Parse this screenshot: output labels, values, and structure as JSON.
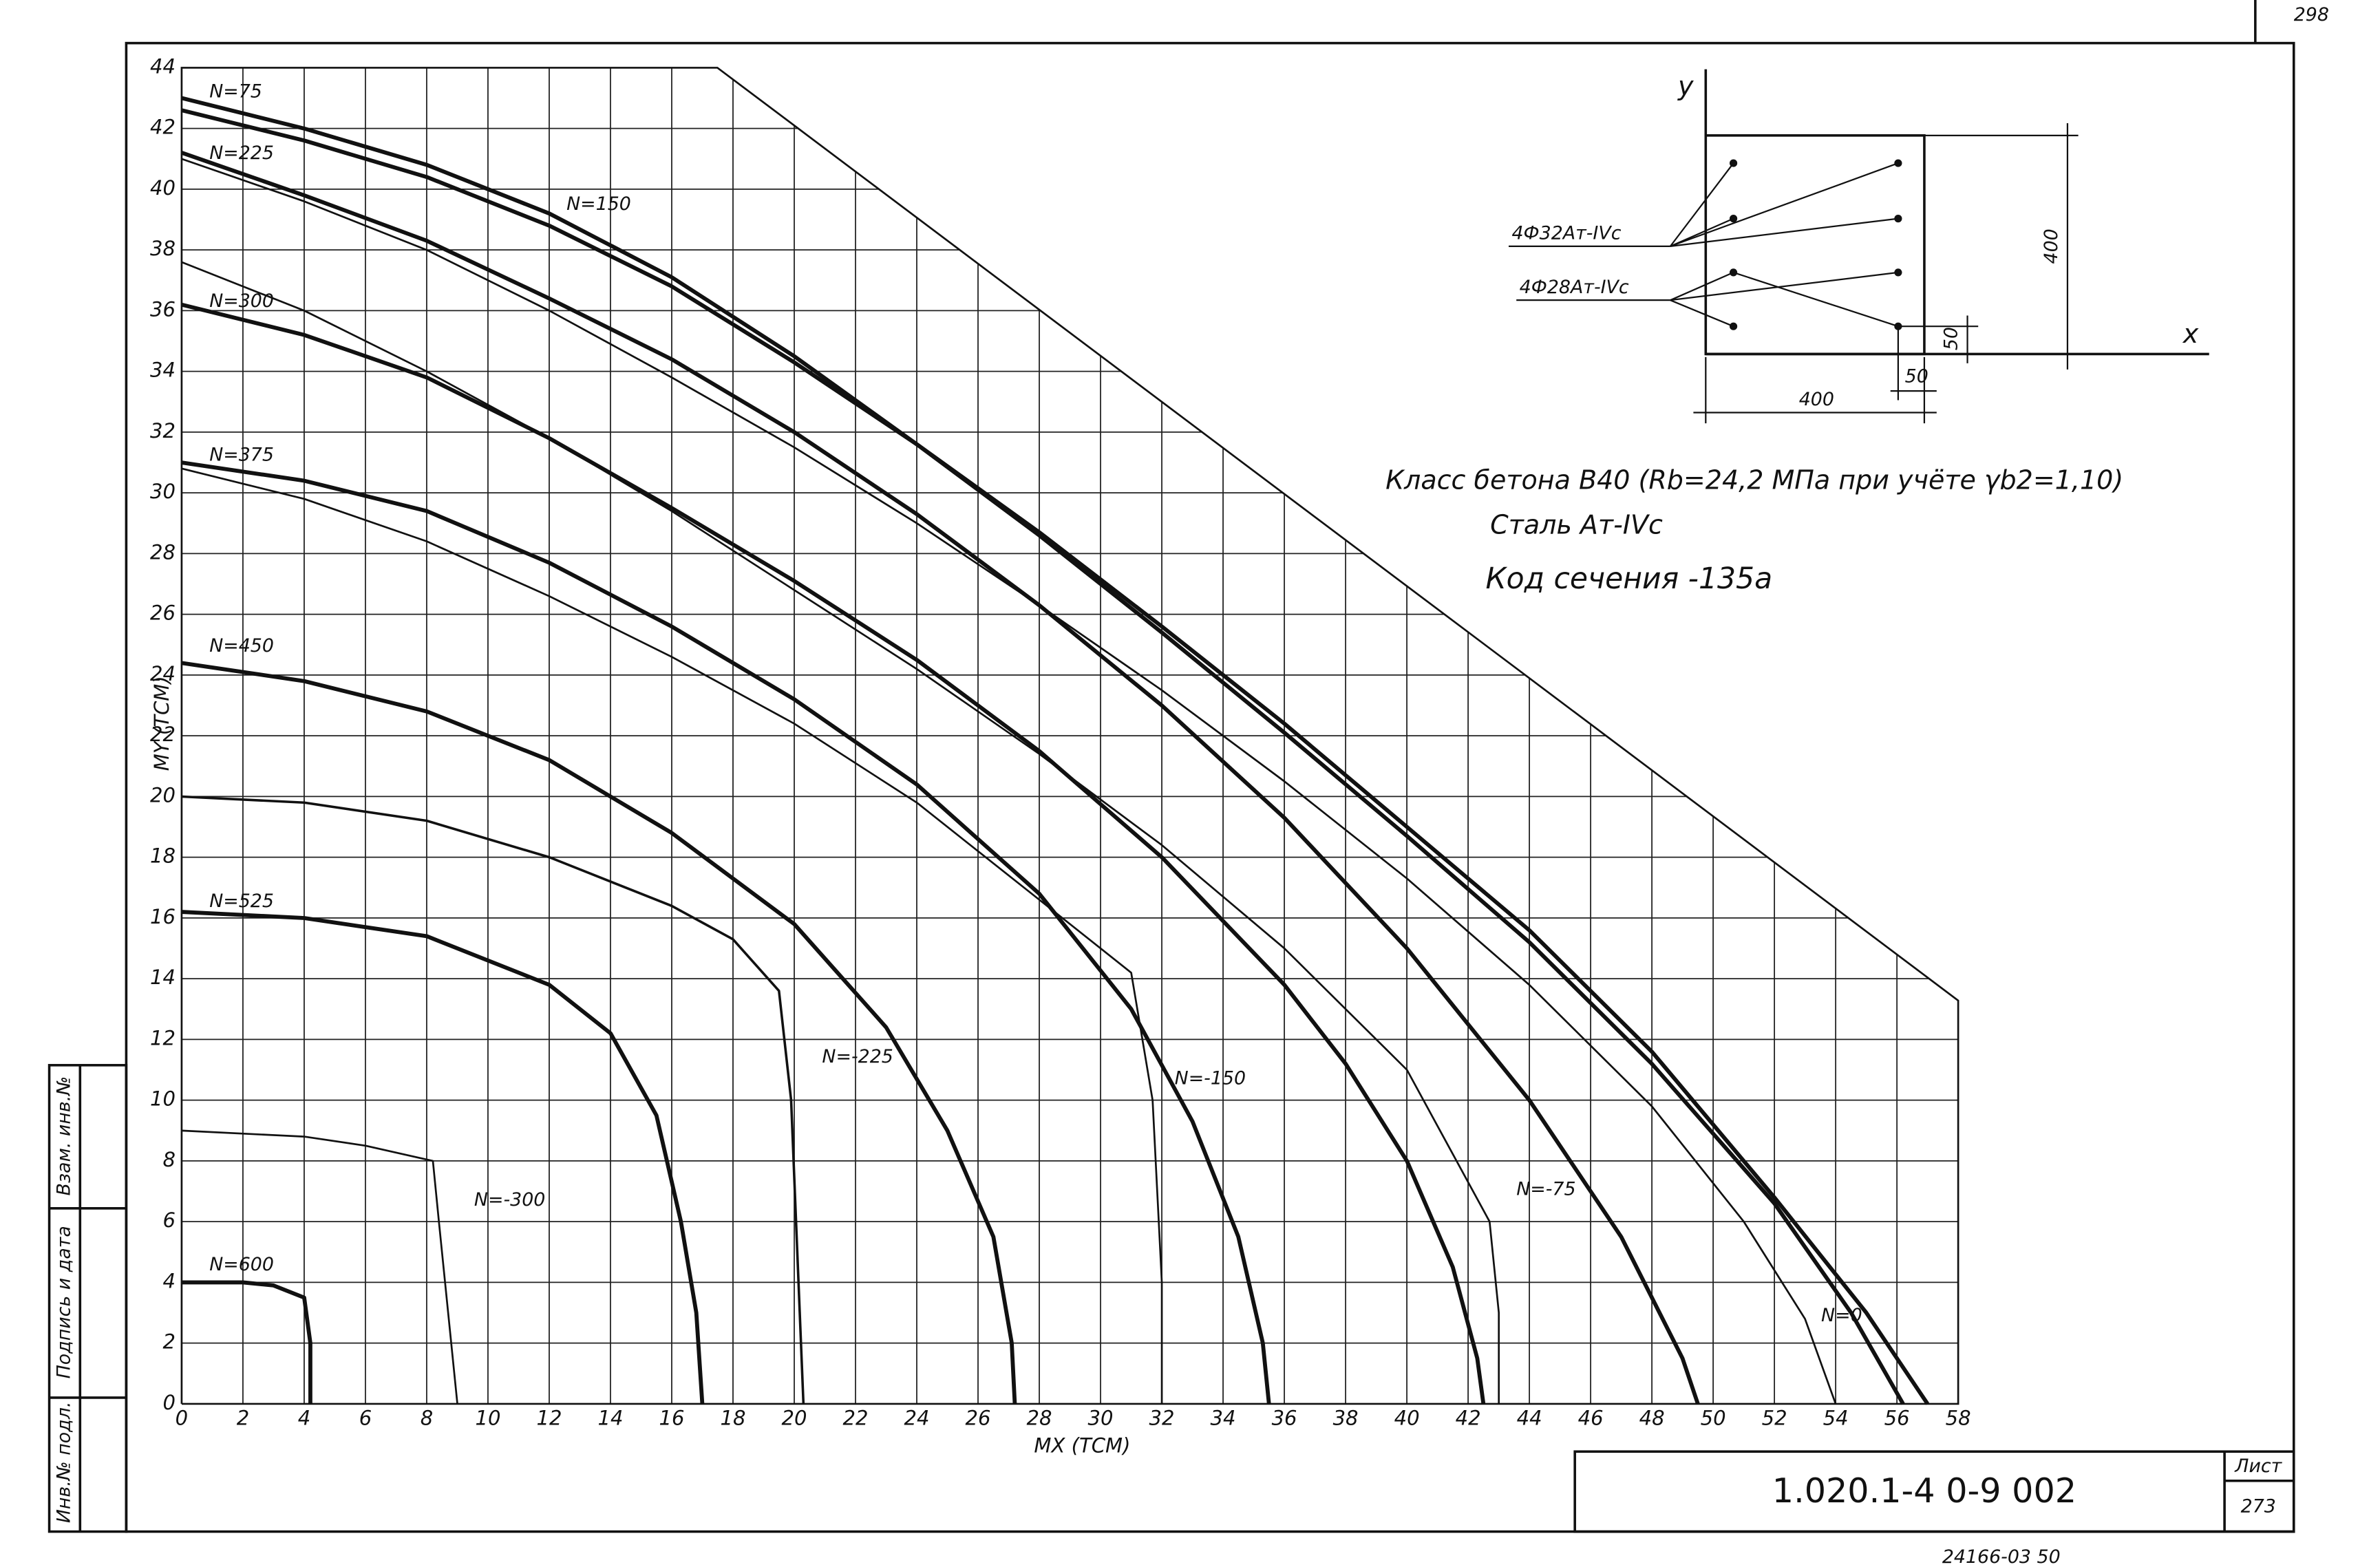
{
  "chart_data": {
    "type": "line",
    "x_label": "MX (ТСМ)",
    "y_label": "MY (ТСМ)",
    "xlim": [
      0,
      58
    ],
    "ylim": [
      0,
      44
    ],
    "xticks": [
      0,
      2,
      4,
      6,
      8,
      10,
      12,
      14,
      16,
      18,
      20,
      22,
      24,
      26,
      28,
      30,
      32,
      34,
      36,
      38,
      40,
      42,
      44,
      46,
      48,
      50,
      52,
      54,
      56,
      58
    ],
    "yticks": [
      0,
      2,
      4,
      6,
      8,
      10,
      12,
      14,
      16,
      18,
      20,
      22,
      24,
      26,
      28,
      30,
      32,
      34,
      36,
      38,
      40,
      42,
      44
    ],
    "grid": true,
    "series": [
      {
        "name": "N=75",
        "color": "#111",
        "line_width": 2.6,
        "x": [
          0,
          4,
          8,
          12,
          16,
          20,
          24,
          28,
          32,
          36,
          40,
          44,
          48,
          52,
          55,
          57
        ],
        "values": [
          43,
          42,
          40.8,
          39.2,
          37.1,
          34.5,
          31.6,
          28.7,
          25.6,
          22.4,
          19,
          15.6,
          11.6,
          6.8,
          3,
          0
        ]
      },
      {
        "name": "N=150",
        "color": "#111",
        "line_width": 2.6,
        "x": [
          0,
          4,
          8,
          12,
          16,
          20,
          24,
          28,
          32,
          36,
          40,
          44,
          48,
          52,
          54.5,
          56.2
        ],
        "values": [
          42.6,
          41.6,
          40.4,
          38.8,
          36.8,
          34.3,
          31.6,
          28.6,
          25.4,
          22.1,
          18.7,
          15.2,
          11.2,
          6.6,
          3,
          0
        ]
      },
      {
        "name": "N=225",
        "color": "#111",
        "line_width": 2.6,
        "x": [
          0,
          4,
          8,
          12,
          16,
          20,
          24,
          28,
          32,
          36,
          40,
          44,
          47,
          49,
          49.5
        ],
        "values": [
          41.2,
          39.8,
          38.3,
          36.4,
          34.4,
          32,
          29.3,
          26.3,
          23,
          19.3,
          15,
          10,
          5.5,
          1.5,
          0
        ]
      },
      {
        "name": "N=300",
        "color": "#111",
        "line_width": 2.6,
        "x": [
          0,
          4,
          8,
          12,
          16,
          20,
          24,
          28,
          32,
          36,
          38,
          40,
          41.5,
          42.3,
          42.5
        ],
        "values": [
          36.2,
          35.2,
          33.8,
          31.8,
          29.5,
          27.1,
          24.5,
          21.5,
          18,
          13.8,
          11.2,
          8,
          4.5,
          1.5,
          0
        ]
      },
      {
        "name": "N=375",
        "color": "#111",
        "line_width": 2.6,
        "x": [
          0,
          4,
          8,
          12,
          16,
          20,
          24,
          28,
          31,
          33,
          34.5,
          35.3,
          35.5
        ],
        "values": [
          31,
          30.4,
          29.4,
          27.7,
          25.6,
          23.2,
          20.4,
          16.8,
          13,
          9.3,
          5.5,
          2,
          0
        ]
      },
      {
        "name": "N=450",
        "color": "#111",
        "line_width": 2.6,
        "x": [
          0,
          4,
          8,
          12,
          16,
          20,
          23,
          25,
          26.5,
          27.1,
          27.2
        ],
        "values": [
          24.4,
          23.8,
          22.8,
          21.2,
          18.8,
          15.8,
          12.4,
          9,
          5.5,
          2,
          0
        ]
      },
      {
        "name": "N=525",
        "color": "#111",
        "line_width": 2.6,
        "x": [
          0,
          4,
          8,
          12,
          14,
          15.5,
          16.3,
          16.8,
          17
        ],
        "values": [
          16.2,
          16,
          15.4,
          13.8,
          12.2,
          9.5,
          6,
          3,
          0
        ]
      },
      {
        "name": "N=600",
        "color": "#111",
        "line_width": 2.6,
        "x": [
          0,
          2,
          3,
          4,
          4.2,
          4.2
        ],
        "values": [
          4,
          4,
          3.9,
          3.5,
          2,
          0
        ]
      },
      {
        "name": "N=0",
        "color": "#111",
        "line_width": 1.2,
        "x": [
          0,
          4,
          8,
          12,
          16,
          20,
          24,
          28,
          32,
          36,
          40,
          44,
          48,
          51,
          53,
          54
        ],
        "values": [
          41,
          39.6,
          38,
          36,
          33.8,
          31.5,
          29,
          26.3,
          23.5,
          20.5,
          17.3,
          13.8,
          9.8,
          6,
          2.8,
          0
        ]
      },
      {
        "name": "N=-75",
        "color": "#111",
        "line_width": 1.2,
        "x": [
          0,
          4,
          8,
          12,
          16,
          20,
          24,
          28,
          32,
          36,
          40,
          42.7,
          43,
          43
        ],
        "values": [
          37.6,
          36,
          34,
          31.8,
          29.4,
          26.8,
          24.2,
          21.4,
          18.4,
          15,
          11,
          6,
          3,
          0
        ]
      },
      {
        "name": "N=-150",
        "color": "#111",
        "line_width": 1.2,
        "x": [
          0,
          4,
          8,
          12,
          16,
          20,
          24,
          28,
          31,
          31.7,
          32,
          32
        ],
        "values": [
          30.8,
          29.8,
          28.4,
          26.6,
          24.6,
          22.4,
          19.8,
          16.6,
          14.2,
          10,
          4,
          0
        ]
      },
      {
        "name": "N=-225",
        "color": "#111",
        "line_width": 1.6,
        "x": [
          0,
          4,
          8,
          12,
          16,
          18,
          19.5,
          19.9,
          20.1,
          20.3
        ],
        "values": [
          20,
          19.8,
          19.2,
          18,
          16.4,
          15.3,
          13.6,
          10,
          5,
          0
        ]
      },
      {
        "name": "N=-300",
        "color": "#111",
        "line_width": 1.2,
        "x": [
          0,
          4,
          6,
          8.2,
          8.4,
          8.6,
          8.8,
          9
        ],
        "values": [
          9,
          8.8,
          8.5,
          8,
          6,
          4,
          2,
          0
        ]
      }
    ],
    "annotations": [
      "Класс бетона В40 (Rb=24,2 МПа при учёте γb2=1,10)",
      "Сталь Ат-IVс",
      "Код сечения -135а"
    ],
    "section": {
      "axis_y": "y",
      "axis_x": "x",
      "rebar_1": "4Ф32Ат-IVс",
      "rebar_2": "4Ф28Ат-IVс",
      "height": "400",
      "width": "400",
      "cover_x": "50",
      "cover_y": "50"
    }
  },
  "title_block": {
    "code": "1.020.1-4 0-9 002",
    "sheet_label": "Лист",
    "sheet": "273",
    "page_no": "298",
    "footer": "24166-03 50"
  },
  "stamp": [
    "Инв.№ подл.",
    "Подпись и дата",
    "Взам. инв.№"
  ]
}
